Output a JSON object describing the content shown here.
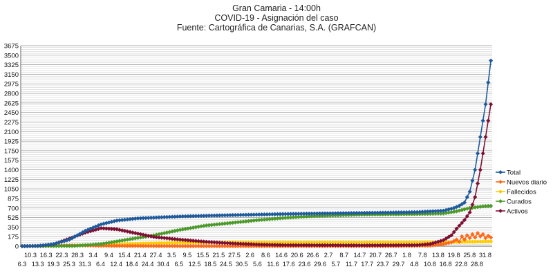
{
  "chart_data": {
    "type": "line",
    "title_lines": [
      "Gran Camaria - 14:00h",
      "COVID-19 - Asignación del caso",
      "Fuente: Cartográfica de Canarias, S.A. (GRAFCAN)"
    ],
    "ylim": [
      0,
      3675
    ],
    "y_ticks": [
      0,
      175,
      350,
      525,
      700,
      875,
      1050,
      1225,
      1400,
      1575,
      1750,
      1925,
      2100,
      2275,
      2450,
      2625,
      2800,
      2975,
      3150,
      3325,
      3500,
      3675
    ],
    "grid": true,
    "legend_position": "right",
    "x_ticks_row1": [
      "10.3",
      "16.3",
      "22.3",
      "28.3",
      "3.4",
      "9.4",
      "15.4",
      "21.4",
      "27.4",
      "3.5",
      "9.5",
      "15.5",
      "21.5",
      "27.5",
      "2.6",
      "8.6",
      "14.6",
      "20.6",
      "26.6",
      "2.7",
      "8.7",
      "14.7",
      "20.7",
      "26.7",
      "1.8",
      "7.8",
      "13.8",
      "19.8",
      "25.8",
      "31.8"
    ],
    "x_ticks_row2": [
      "6.3",
      "13.3",
      "19.3",
      "25.3",
      "31.3",
      "6.4",
      "12.4",
      "18.4",
      "24.4",
      "30.4",
      "6.5",
      "12.5",
      "18.5",
      "24.5",
      "30.5",
      "5.6",
      "11.6",
      "17.6",
      "23.6",
      "29.6",
      "5.7",
      "11.7",
      "17.7",
      "23.7",
      "29.7",
      "4.8",
      "10.8",
      "16.8",
      "22.8",
      "28.8"
    ],
    "x_points": 179,
    "series": [
      {
        "name": "Total",
        "color": "#1f5b9c",
        "marker": "diamond",
        "keypoints": [
          [
            0,
            0
          ],
          [
            6,
            5
          ],
          [
            12,
            40
          ],
          [
            18,
            120
          ],
          [
            24,
            280
          ],
          [
            30,
            400
          ],
          [
            36,
            470
          ],
          [
            44,
            510
          ],
          [
            60,
            545
          ],
          [
            80,
            570
          ],
          [
            100,
            590
          ],
          [
            130,
            610
          ],
          [
            150,
            625
          ],
          [
            160,
            650
          ],
          [
            164,
            700
          ],
          [
            166,
            740
          ],
          [
            168,
            800
          ],
          [
            170,
            1000
          ],
          [
            172,
            1400
          ],
          [
            174,
            2000
          ],
          [
            176,
            2600
          ],
          [
            177,
            3000
          ],
          [
            178,
            3400
          ],
          [
            179,
            3650
          ]
        ]
      },
      {
        "name": "Nuevos diario",
        "color": "#ff6a1a",
        "marker": "diamond",
        "keypoints": [
          [
            0,
            0
          ],
          [
            10,
            8
          ],
          [
            20,
            15
          ],
          [
            30,
            8
          ],
          [
            40,
            5
          ],
          [
            60,
            2
          ],
          [
            100,
            2
          ],
          [
            140,
            3
          ],
          [
            155,
            10
          ],
          [
            160,
            40
          ],
          [
            163,
            70
          ],
          [
            165,
            120
          ],
          [
            166,
            80
          ],
          [
            167,
            180
          ],
          [
            168,
            120
          ],
          [
            169,
            200
          ],
          [
            170,
            150
          ],
          [
            171,
            220
          ],
          [
            172,
            160
          ],
          [
            173,
            240
          ],
          [
            174,
            180
          ],
          [
            175,
            220
          ],
          [
            176,
            150
          ],
          [
            177,
            190
          ],
          [
            178,
            160
          ],
          [
            179,
            180
          ]
        ]
      },
      {
        "name": "Fallecidos",
        "color": "#ffcc00",
        "marker": "diamond",
        "keypoints": [
          [
            0,
            0
          ],
          [
            10,
            5
          ],
          [
            20,
            15
          ],
          [
            30,
            25
          ],
          [
            40,
            40
          ],
          [
            50,
            55
          ],
          [
            60,
            65
          ],
          [
            80,
            70
          ],
          [
            120,
            70
          ],
          [
            150,
            72
          ],
          [
            165,
            75
          ],
          [
            170,
            80
          ],
          [
            175,
            85
          ],
          [
            179,
            88
          ]
        ]
      },
      {
        "name": "Curados",
        "color": "#4c9a2a",
        "marker": "diamond",
        "keypoints": [
          [
            0,
            0
          ],
          [
            20,
            5
          ],
          [
            30,
            40
          ],
          [
            40,
            120
          ],
          [
            50,
            200
          ],
          [
            60,
            300
          ],
          [
            70,
            380
          ],
          [
            80,
            430
          ],
          [
            90,
            480
          ],
          [
            100,
            520
          ],
          [
            110,
            550
          ],
          [
            130,
            580
          ],
          [
            150,
            590
          ],
          [
            160,
            600
          ],
          [
            165,
            640
          ],
          [
            170,
            700
          ],
          [
            175,
            730
          ],
          [
            179,
            740
          ]
        ]
      },
      {
        "name": "Activos",
        "color": "#7d1132",
        "marker": "diamond",
        "keypoints": [
          [
            0,
            0
          ],
          [
            6,
            5
          ],
          [
            12,
            35
          ],
          [
            18,
            140
          ],
          [
            24,
            250
          ],
          [
            30,
            330
          ],
          [
            36,
            310
          ],
          [
            42,
            250
          ],
          [
            50,
            170
          ],
          [
            60,
            120
          ],
          [
            70,
            80
          ],
          [
            80,
            50
          ],
          [
            90,
            30
          ],
          [
            100,
            20
          ],
          [
            130,
            15
          ],
          [
            150,
            20
          ],
          [
            155,
            40
          ],
          [
            160,
            110
          ],
          [
            163,
            200
          ],
          [
            165,
            320
          ],
          [
            168,
            480
          ],
          [
            170,
            620
          ],
          [
            172,
            900
          ],
          [
            174,
            1400
          ],
          [
            176,
            2000
          ],
          [
            177,
            2300
          ],
          [
            178,
            2600
          ],
          [
            179,
            2880
          ]
        ]
      }
    ]
  }
}
